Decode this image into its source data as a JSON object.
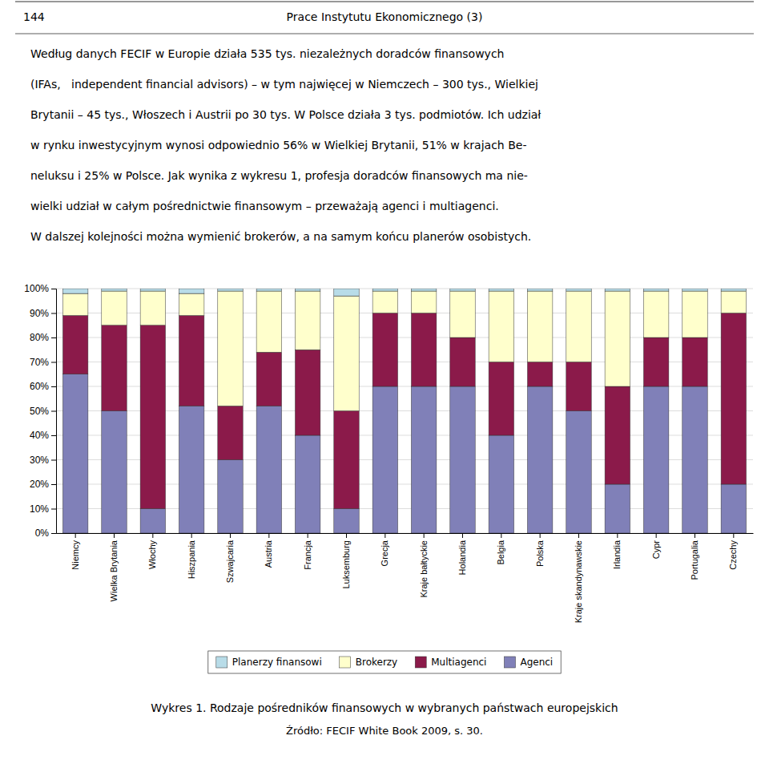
{
  "header": {
    "number": "144",
    "title": "Prace Instytutu Ekonomicznego (3)"
  },
  "text": [
    "Według danych FECIF w Europie działa 535 tys. niezależnych doradców finansowych",
    "(IFAs,   independent financial advisors) – w tym najwięcej w Niemczech – 300 tys., Wielkiej",
    "Brytanii – 45 tys., Włoszech i Austrii po 30 tys. W Polsce działa 3 tys. podmiotów. Ich udział",
    "w rynku inwestycyjnym wynosi odpowiednio 56% w Wielkiej Brytanii, 51% w krajach Be-",
    "neluksu i 25% w Polsce. Jak wynika z wykresu 1, profesja doradców finansowych ma nie-",
    "wielki udział w całym pośrednictwie finansowym – przeważają agenci i multiagenci.",
    "W dalszej kolejności można wymienić brokerów, a na samym końcu planerów osobistych."
  ],
  "chart_data": {
    "type": "bar",
    "stacked": true,
    "title": "Wykres 1. Rodzaje pośredników finansowych w wybranych państwach europejskich",
    "annotations": [
      "Źródło: FECIF White Book 2009, s. 30."
    ],
    "categories": [
      "Niemcy",
      "Wielka Brytania",
      "Włochy",
      "Hiszpania",
      "Szwajcaria",
      "Austria",
      "Francja",
      "Luksemburg",
      "Grecja",
      "Kraje bałtyckie",
      "Holandia",
      "Belgia",
      "Polska",
      "Kraje skandynawskie",
      "Irlandia",
      "Cypr",
      "Portugalia",
      "Czechy"
    ],
    "series": [
      {
        "name": "Agenci",
        "color": "#8080b8",
        "values": [
          65,
          50,
          10,
          52,
          30,
          52,
          40,
          10,
          60,
          60,
          60,
          40,
          60,
          50,
          20,
          60,
          60,
          20
        ]
      },
      {
        "name": "Multiagenci",
        "color": "#8b1a4a",
        "values": [
          24,
          35,
          75,
          37,
          22,
          22,
          35,
          40,
          30,
          30,
          20,
          30,
          10,
          20,
          40,
          20,
          20,
          70
        ]
      },
      {
        "name": "Brokerzy",
        "color": "#ffffcc",
        "values": [
          9,
          14,
          14,
          9,
          47,
          25,
          24,
          47,
          9,
          9,
          19,
          29,
          29,
          29,
          39,
          19,
          19,
          9
        ]
      },
      {
        "name": "Planerzy finansowi",
        "color": "#b8dce8",
        "values": [
          2,
          1,
          1,
          2,
          1,
          1,
          1,
          3,
          1,
          1,
          1,
          1,
          1,
          1,
          1,
          1,
          1,
          1
        ]
      }
    ],
    "ylim": [
      0,
      100
    ],
    "yticks": [
      {
        "value": 0,
        "label": "0%"
      },
      {
        "value": 10,
        "label": "10%"
      },
      {
        "value": 20,
        "label": "20%"
      },
      {
        "value": 30,
        "label": "30%"
      },
      {
        "value": 40,
        "label": "40%"
      },
      {
        "value": 50,
        "label": "50%"
      },
      {
        "value": 60,
        "label": "60%"
      },
      {
        "value": 70,
        "label": "70%"
      },
      {
        "value": 80,
        "label": "80%"
      },
      {
        "value": 90,
        "label": "90%"
      },
      {
        "value": 100,
        "label": "100%"
      }
    ],
    "grid": true,
    "legend": "bottom"
  }
}
